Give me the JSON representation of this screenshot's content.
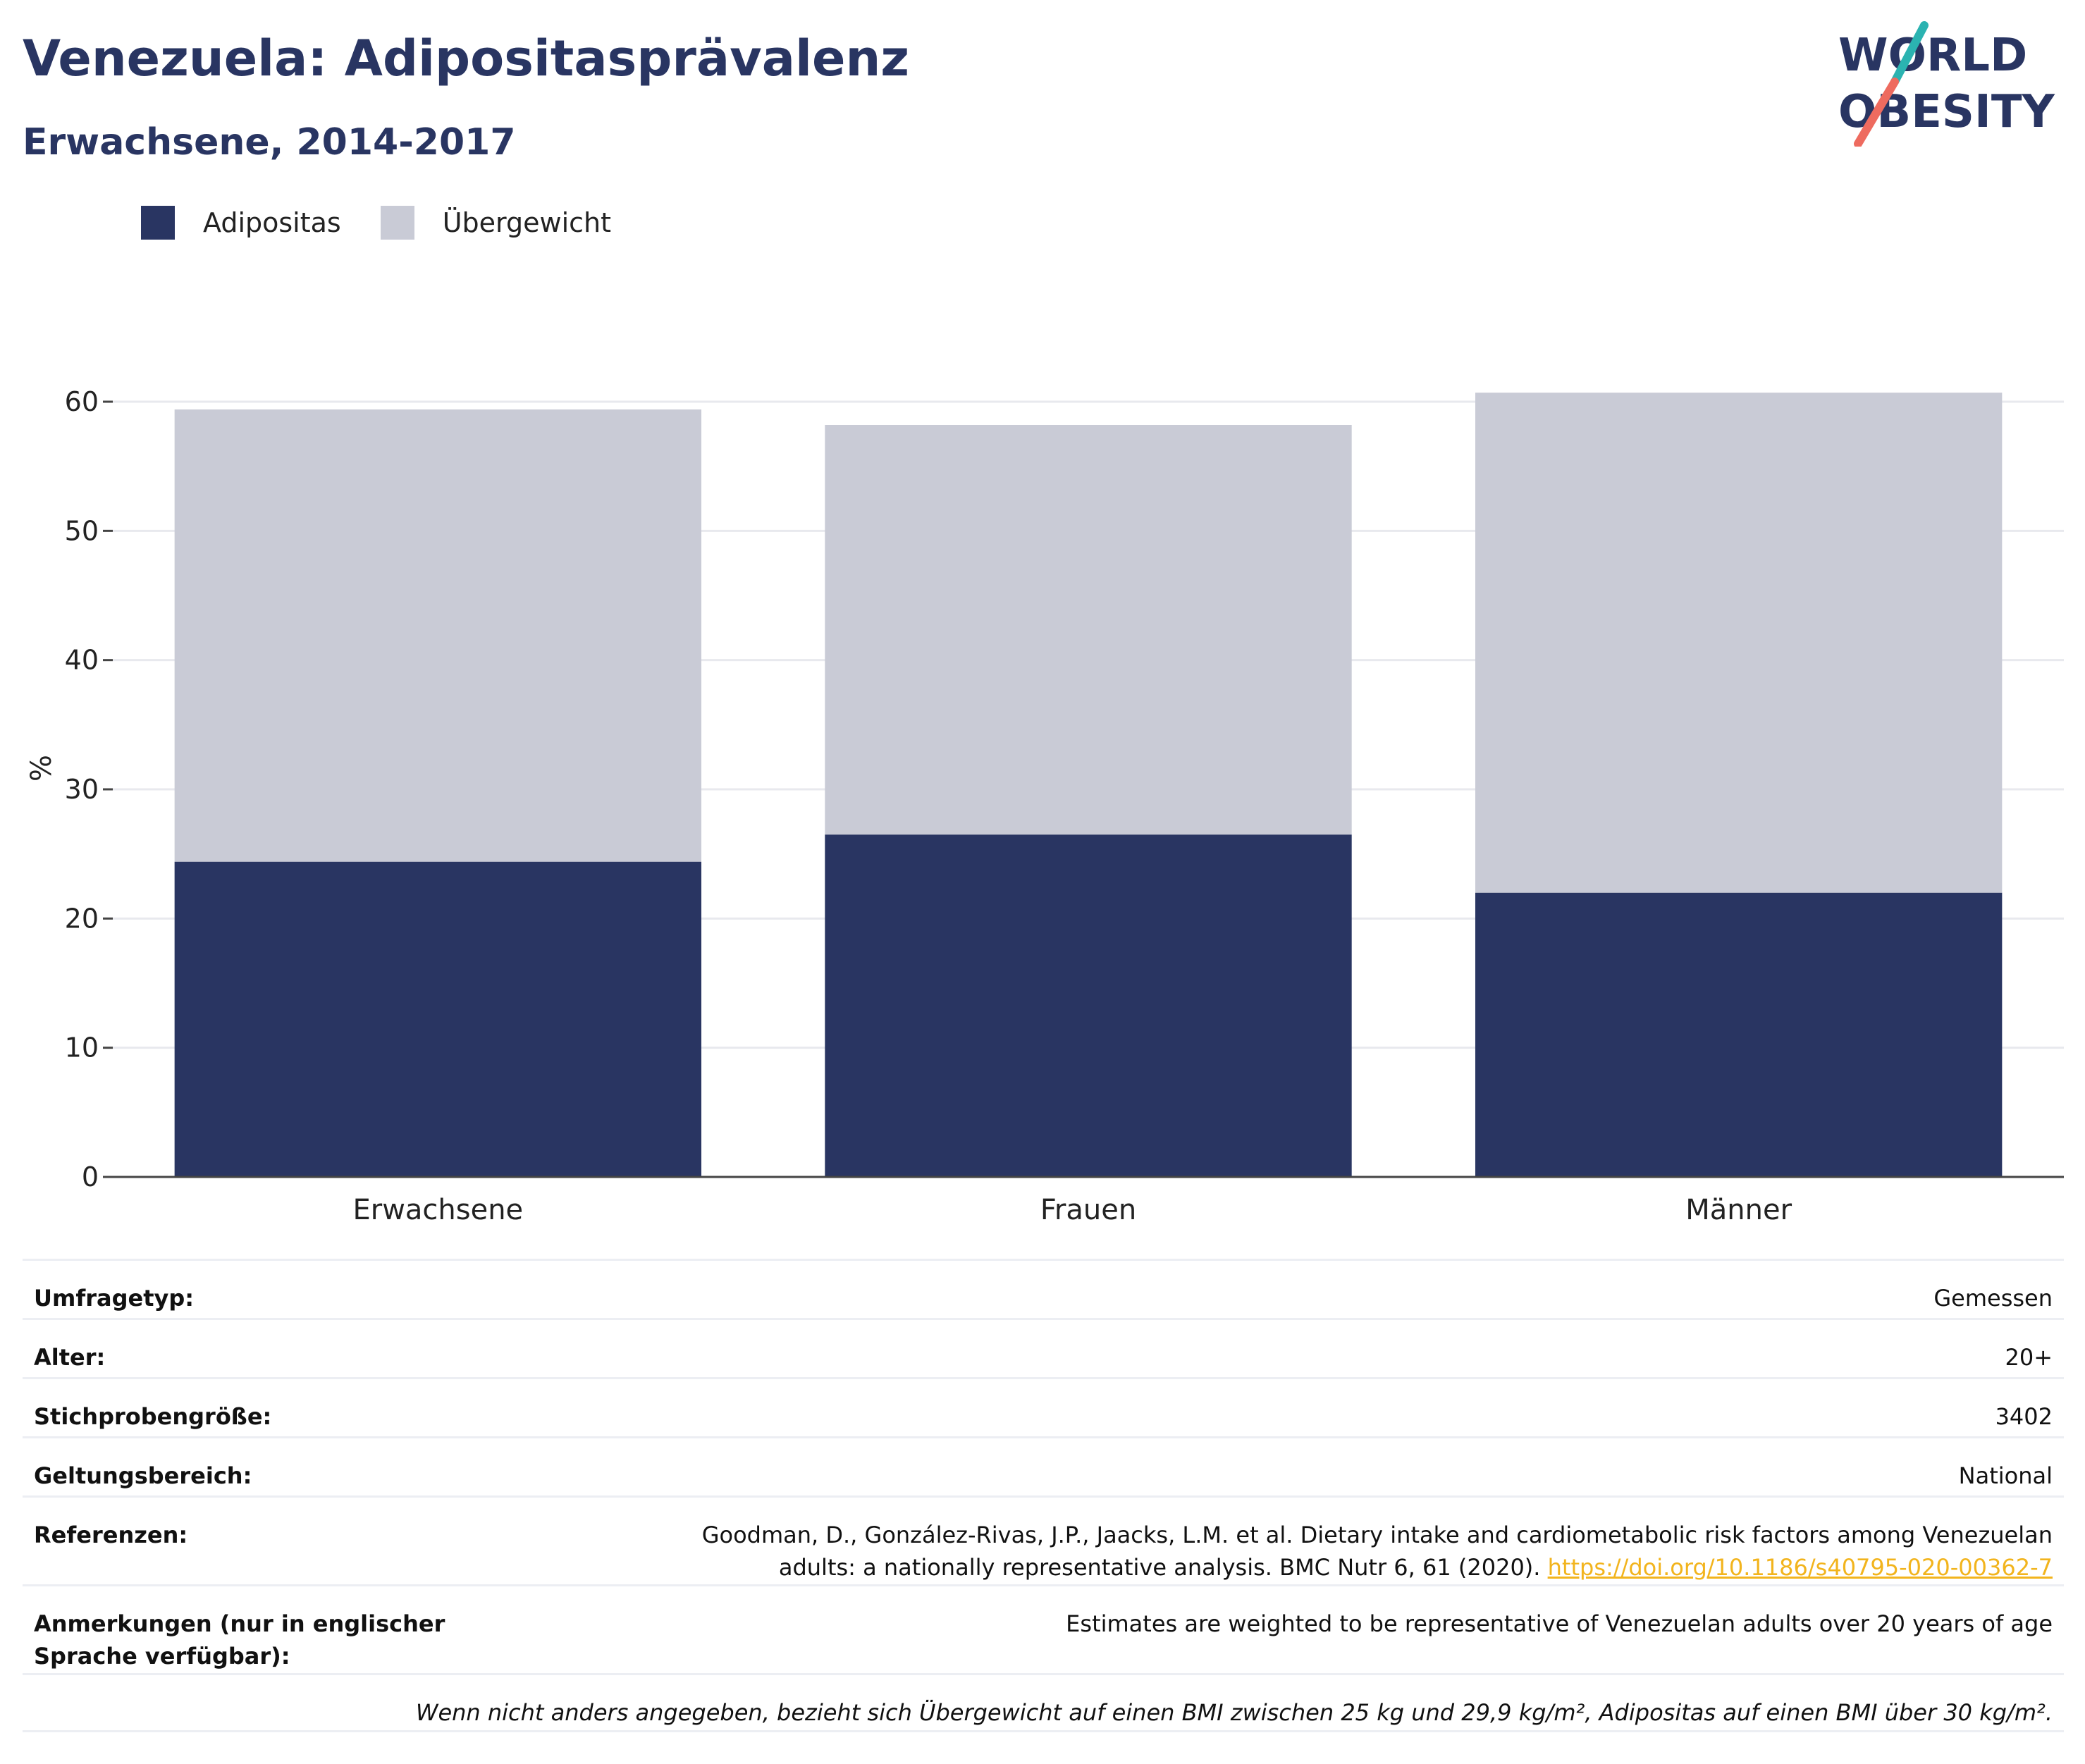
{
  "header": {
    "title": "Venezuela: Adipositasprävalenz",
    "subtitle": "Erwachsene, 2014-2017"
  },
  "logo": {
    "line1": "WORLD",
    "line2": "OBESITY"
  },
  "colors": {
    "brand": "#293562",
    "adipositas": "#293562",
    "uebergewicht": "#c9cbd6",
    "link": "#f2b41d",
    "logo_teal": "#2bb3b1",
    "logo_coral": "#ee6b5f"
  },
  "legend": [
    {
      "label": "Adipositas",
      "color": "#293562"
    },
    {
      "label": "Übergewicht",
      "color": "#c9cbd6"
    }
  ],
  "chart_data": {
    "type": "bar",
    "stacked": true,
    "categories": [
      "Erwachsene",
      "Frauen",
      "Männer"
    ],
    "series": [
      {
        "name": "Adipositas",
        "values": [
          24.4,
          26.5,
          22.0
        ],
        "color": "#293562"
      },
      {
        "name": "Übergewicht",
        "values": [
          35.0,
          31.7,
          38.7
        ],
        "color": "#c9cbd6"
      }
    ],
    "ylabel": "%",
    "xlabel": "",
    "ylim": [
      0,
      62
    ],
    "yticks": [
      0,
      10,
      20,
      30,
      40,
      50,
      60
    ],
    "grid": true,
    "legend_position": "top-left"
  },
  "info": {
    "survey_type": {
      "label": "Umfragetyp:",
      "value": "Gemessen"
    },
    "age": {
      "label": "Alter:",
      "value": "20+"
    },
    "sample_size": {
      "label": "Stichprobengröße:",
      "value": "3402"
    },
    "scope": {
      "label": "Geltungsbereich:",
      "value": "National"
    },
    "references": {
      "label": "Referenzen:",
      "text": "Goodman, D., González-Rivas, J.P., Jaacks, L.M. et al. Dietary intake and cardiometabolic risk factors among Venezuelan adults: a nationally representative analysis. BMC Nutr 6, 61 (2020).",
      "link": "https://doi.org/10.1186/s40795-020-00362-7"
    },
    "notes": {
      "label": "Anmerkungen (nur in englischer Sprache verfügbar):",
      "value": "Estimates are weighted to be representative of Venezuelan adults over 20 years of age"
    },
    "footnote": "Wenn nicht anders angegeben, bezieht sich Übergewicht auf einen BMI zwischen 25 kg und 29,9 kg/m², Adipositas auf einen BMI über 30 kg/m²."
  }
}
